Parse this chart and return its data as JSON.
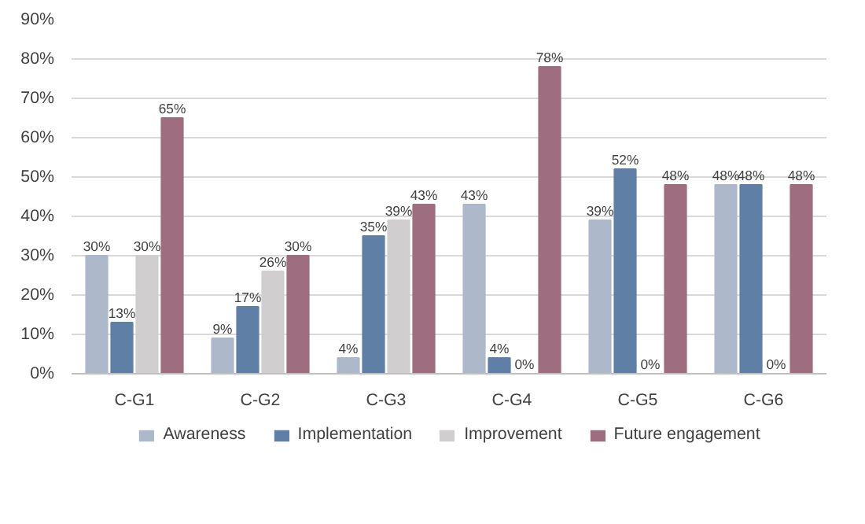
{
  "chart_data": {
    "type": "bar",
    "categories": [
      "C-G1",
      "C-G2",
      "C-G3",
      "C-G4",
      "C-G5",
      "C-G6"
    ],
    "series": [
      {
        "name": "Awareness",
        "color": "#adb9ca",
        "values": [
          30,
          9,
          4,
          43,
          39,
          48
        ],
        "value_labels": [
          "30%",
          "9%",
          "4%",
          "43%",
          "39%",
          "48%"
        ]
      },
      {
        "name": "Implementation",
        "color": "#5f7fa6",
        "values": [
          13,
          17,
          35,
          4,
          52,
          48
        ],
        "value_labels": [
          "13%",
          "17%",
          "35%",
          "4%",
          "52%",
          "48%"
        ]
      },
      {
        "name": "Improvement",
        "color": "#d0cece",
        "values": [
          30,
          26,
          39,
          0,
          0,
          0
        ],
        "value_labels": [
          "30%",
          "26%",
          "39%",
          "0%",
          "0%",
          "0%"
        ]
      },
      {
        "name": "Future engagement",
        "color": "#9e6e80",
        "values": [
          65,
          30,
          43,
          78,
          48,
          48
        ],
        "value_labels": [
          "65%",
          "30%",
          "43%",
          "78%",
          "48%",
          "48%"
        ]
      }
    ],
    "ylim": [
      0,
      90
    ],
    "yticks": [
      {
        "value": 0,
        "label": "0%"
      },
      {
        "value": 10,
        "label": "10%"
      },
      {
        "value": 20,
        "label": "20%"
      },
      {
        "value": 30,
        "label": "30%"
      },
      {
        "value": 40,
        "label": "40%"
      },
      {
        "value": 50,
        "label": "50%"
      },
      {
        "value": 60,
        "label": "60%"
      },
      {
        "value": 70,
        "label": "70%"
      },
      {
        "value": 80,
        "label": "80%"
      },
      {
        "value": 90,
        "label": "90%"
      }
    ],
    "grid": "y",
    "legend": "bottom"
  }
}
